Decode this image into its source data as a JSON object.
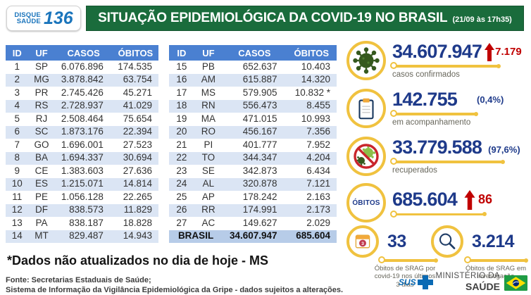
{
  "header": {
    "logo": {
      "line1": "DISQUE",
      "line2": "SAÚDE",
      "number": "136"
    },
    "title": "SITUAÇÃO EPIDEMIOLÓGICA DA COVID-19 NO BRASIL",
    "timestamp": "(21/09 às 17h35)"
  },
  "chart_data": {
    "type": "table",
    "title": "Situação epidemiológica da COVID-19 no Brasil (21/09 às 17h35)",
    "columns": [
      "ID",
      "UF",
      "CASOS",
      "ÓBITOS"
    ],
    "rows": [
      {
        "id": "1",
        "uf": "SP",
        "casos": "6.076.896",
        "obitos": "174.535"
      },
      {
        "id": "2",
        "uf": "MG",
        "casos": "3.878.842",
        "obitos": "63.754"
      },
      {
        "id": "3",
        "uf": "PR",
        "casos": "2.745.426",
        "obitos": "45.271"
      },
      {
        "id": "4",
        "uf": "RS",
        "casos": "2.728.937",
        "obitos": "41.029"
      },
      {
        "id": "5",
        "uf": "RJ",
        "casos": "2.508.464",
        "obitos": "75.654"
      },
      {
        "id": "6",
        "uf": "SC",
        "casos": "1.873.176",
        "obitos": "22.394"
      },
      {
        "id": "7",
        "uf": "GO",
        "casos": "1.696.001",
        "obitos": "27.523"
      },
      {
        "id": "8",
        "uf": "BA",
        "casos": "1.694.337",
        "obitos": "30.694"
      },
      {
        "id": "9",
        "uf": "CE",
        "casos": "1.383.603",
        "obitos": "27.636"
      },
      {
        "id": "10",
        "uf": "ES",
        "casos": "1.215.071",
        "obitos": "14.814"
      },
      {
        "id": "11",
        "uf": "PE",
        "casos": "1.056.128",
        "obitos": "22.265"
      },
      {
        "id": "12",
        "uf": "DF",
        "casos": "838.573",
        "obitos": "11.829"
      },
      {
        "id": "13",
        "uf": "PA",
        "casos": "838.187",
        "obitos": "18.828"
      },
      {
        "id": "14",
        "uf": "MT",
        "casos": "829.487",
        "obitos": "14.943"
      },
      {
        "id": "15",
        "uf": "PB",
        "casos": "652.637",
        "obitos": "10.403"
      },
      {
        "id": "16",
        "uf": "AM",
        "casos": "615.887",
        "obitos": "14.320"
      },
      {
        "id": "17",
        "uf": "MS",
        "casos": "579.905",
        "obitos": "10.832 *"
      },
      {
        "id": "18",
        "uf": "RN",
        "casos": "556.473",
        "obitos": "8.455"
      },
      {
        "id": "19",
        "uf": "MA",
        "casos": "471.015",
        "obitos": "10.993"
      },
      {
        "id": "20",
        "uf": "RO",
        "casos": "456.167",
        "obitos": "7.356"
      },
      {
        "id": "21",
        "uf": "PI",
        "casos": "401.777",
        "obitos": "7.952"
      },
      {
        "id": "22",
        "uf": "TO",
        "casos": "344.347",
        "obitos": "4.204"
      },
      {
        "id": "23",
        "uf": "SE",
        "casos": "342.873",
        "obitos": "6.434"
      },
      {
        "id": "24",
        "uf": "AL",
        "casos": "320.878",
        "obitos": "7.121"
      },
      {
        "id": "25",
        "uf": "AP",
        "casos": "178.242",
        "obitos": "2.163"
      },
      {
        "id": "26",
        "uf": "RR",
        "casos": "174.991",
        "obitos": "2.173"
      },
      {
        "id": "27",
        "uf": "AC",
        "casos": "149.627",
        "obitos": "2.029"
      }
    ],
    "total": {
      "label": "BRASIL",
      "casos": "34.607.947",
      "obitos": "685.604"
    },
    "indicators": [
      {
        "name": "casos confirmados",
        "value": "34.607.947",
        "delta": "7.179",
        "delta_direction": "up"
      },
      {
        "name": "em acompanhamento",
        "value": "142.755",
        "percent": "(0,4%)"
      },
      {
        "name": "recuperados",
        "value": "33.779.588",
        "percent": "(97,6%)"
      },
      {
        "name": "óbitos",
        "value": "685.604",
        "delta": "86",
        "delta_direction": "up"
      },
      {
        "name": "óbitos de SRAG por covid-19 nos últimos 3 dias",
        "value": "33"
      },
      {
        "name": "óbitos de SRAG em investigação",
        "value": "3.214"
      }
    ]
  },
  "stats": [
    {
      "icon": "virus-icon",
      "value": "34.607.947",
      "delta": "7.179",
      "label": "casos confirmados"
    },
    {
      "icon": "clipboard-icon",
      "value": "142.755",
      "percent": "(0,4%)",
      "label": "em acompanhamento"
    },
    {
      "icon": "no-virus-icon",
      "value": "33.779.588",
      "percent": "(97,6%)",
      "label": "recuperados"
    },
    {
      "icon": "obitos-badge",
      "badge_text": "ÓBITOS",
      "value": "685.604",
      "delta": "86"
    }
  ],
  "srag": [
    {
      "icon": "calendar-icon",
      "badge": "3",
      "value": "33",
      "label_lines": [
        "Óbitos de SRAG por",
        "covid-19 nos últimos",
        "3 dias"
      ]
    },
    {
      "icon": "magnifier-icon",
      "value": "3.214",
      "label_lines": [
        "Óbitos de SRAG em",
        "investigação"
      ]
    }
  ],
  "footnote": "*Dados não atualizados no dia de hoje - MS",
  "source": {
    "line1": "Fonte: Secretarias Estaduais de Saúde;",
    "line2": "Sistema de Informação da Vigilância Epidemiológica da Gripe - dados sujeitos a alterações."
  },
  "footer_logos": {
    "sus": "SUS",
    "ministry_line1": "MINISTÉRIO DA",
    "ministry_line2": "SAÚDE"
  },
  "colors": {
    "banner_green": "#1a6c3c",
    "logo_blue": "#1b75bc",
    "table_header_blue": "#4a80d1",
    "row_stripe": "#dbe5f4",
    "total_row_blue": "#b7cce8",
    "accent_navy": "#1e3a8a",
    "alert_red": "#c00000",
    "accent_yellow": "#f0c23f"
  }
}
